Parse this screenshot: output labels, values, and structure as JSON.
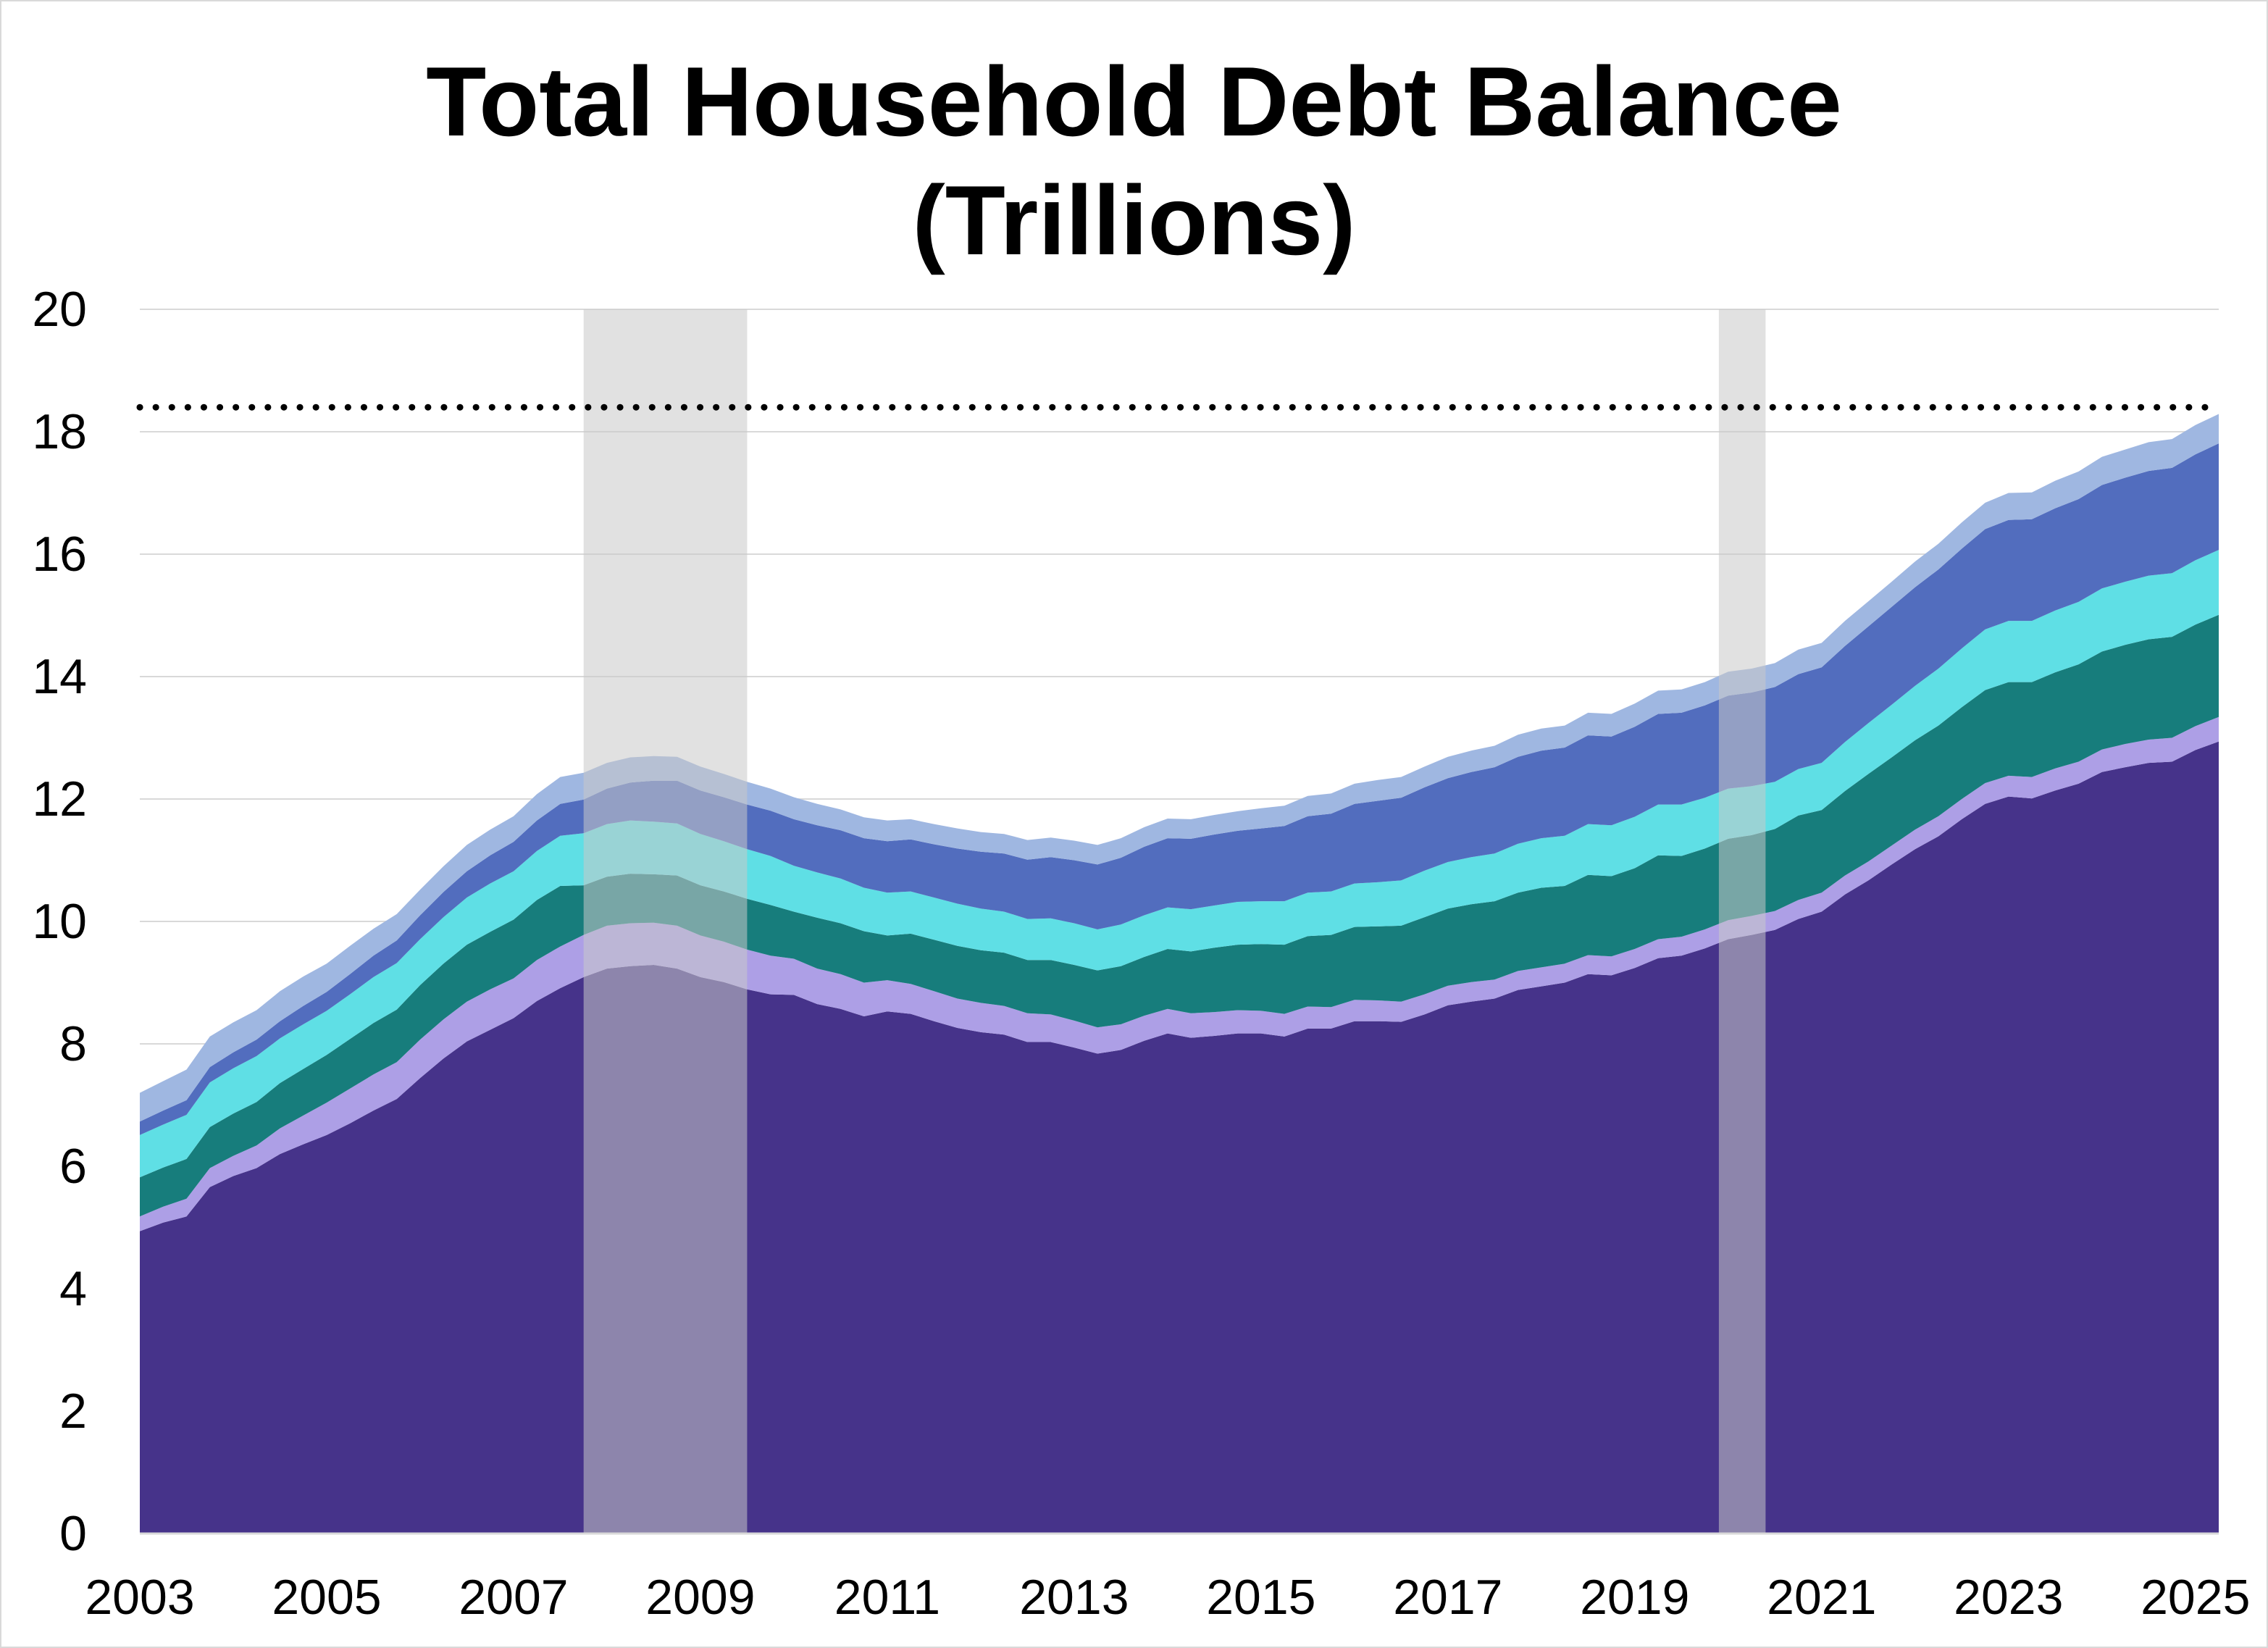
{
  "chart_data": {
    "type": "area",
    "stacked": true,
    "title": "Total Household Debt Balance",
    "subtitle": "(Trillions)",
    "xlabel": "",
    "ylabel": "",
    "xlim": [
      2003.0,
      2025.25
    ],
    "ylim": [
      0,
      20
    ],
    "grid": true,
    "legend": "none",
    "y_ticks": [
      "0",
      "2",
      "4",
      "6",
      "8",
      "10",
      "12",
      "14",
      "16",
      "18",
      "20"
    ],
    "x_ticks": [
      "2003",
      "2005",
      "2007",
      "2009",
      "2011",
      "2013",
      "2015",
      "2017",
      "2019",
      "2021",
      "2023",
      "2025"
    ],
    "recessions": [
      {
        "start": 2007.75,
        "end": 2009.5
      },
      {
        "start": 2019.9,
        "end": 2020.4
      }
    ],
    "reference_line": {
      "value": 18.4,
      "style": "dotted",
      "color": "#000000"
    },
    "x": [
      2003.0,
      2003.25,
      2003.5,
      2003.75,
      2004.0,
      2004.25,
      2004.5,
      2004.75,
      2005.0,
      2005.25,
      2005.5,
      2005.75,
      2006.0,
      2006.25,
      2006.5,
      2006.75,
      2007.0,
      2007.25,
      2007.5,
      2007.75,
      2008.0,
      2008.25,
      2008.5,
      2008.75,
      2009.0,
      2009.25,
      2009.5,
      2009.75,
      2010.0,
      2010.25,
      2010.5,
      2010.75,
      2011.0,
      2011.25,
      2011.5,
      2011.75,
      2012.0,
      2012.25,
      2012.5,
      2012.75,
      2013.0,
      2013.25,
      2013.5,
      2013.75,
      2014.0,
      2014.25,
      2014.5,
      2014.75,
      2015.0,
      2015.25,
      2015.5,
      2015.75,
      2016.0,
      2016.25,
      2016.5,
      2016.75,
      2017.0,
      2017.25,
      2017.5,
      2017.75,
      2018.0,
      2018.25,
      2018.5,
      2018.75,
      2019.0,
      2019.25,
      2019.5,
      2019.75,
      2020.0,
      2020.25,
      2020.5,
      2020.75,
      2021.0,
      2021.25,
      2021.5,
      2021.75,
      2022.0,
      2022.25,
      2022.5,
      2022.75,
      2023.0,
      2023.25,
      2023.5,
      2023.75,
      2024.0,
      2024.25,
      2024.5,
      2024.75,
      2025.0,
      2025.25
    ],
    "series": [
      {
        "color": "#46338a",
        "values": [
          4.94,
          5.08,
          5.18,
          5.66,
          5.84,
          5.97,
          6.2,
          6.36,
          6.51,
          6.7,
          6.91,
          7.1,
          7.44,
          7.76,
          8.04,
          8.23,
          8.42,
          8.7,
          8.91,
          9.09,
          9.23,
          9.27,
          9.29,
          9.23,
          9.09,
          9.01,
          8.89,
          8.81,
          8.8,
          8.65,
          8.57,
          8.45,
          8.53,
          8.49,
          8.37,
          8.26,
          8.19,
          8.15,
          8.03,
          8.03,
          7.94,
          7.84,
          7.9,
          8.05,
          8.17,
          8.1,
          8.13,
          8.17,
          8.17,
          8.12,
          8.25,
          8.25,
          8.37,
          8.37,
          8.36,
          8.48,
          8.63,
          8.69,
          8.74,
          8.88,
          8.94,
          9.0,
          9.14,
          9.12,
          9.24,
          9.4,
          9.44,
          9.56,
          9.71,
          9.78,
          9.86,
          10.04,
          10.16,
          10.44,
          10.67,
          10.93,
          11.18,
          11.39,
          11.67,
          11.92,
          12.04,
          12.01,
          12.14,
          12.25,
          12.44,
          12.52,
          12.59,
          12.61,
          12.8,
          12.94
        ]
      },
      {
        "color": "#ad9fe6",
        "values": [
          0.24,
          0.26,
          0.29,
          0.31,
          0.33,
          0.37,
          0.42,
          0.47,
          0.53,
          0.57,
          0.59,
          0.6,
          0.63,
          0.64,
          0.65,
          0.66,
          0.65,
          0.67,
          0.68,
          0.69,
          0.7,
          0.7,
          0.69,
          0.7,
          0.68,
          0.66,
          0.65,
          0.63,
          0.59,
          0.58,
          0.57,
          0.55,
          0.51,
          0.49,
          0.49,
          0.48,
          0.48,
          0.47,
          0.47,
          0.45,
          0.44,
          0.43,
          0.42,
          0.41,
          0.4,
          0.4,
          0.39,
          0.38,
          0.37,
          0.37,
          0.36,
          0.35,
          0.35,
          0.34,
          0.33,
          0.33,
          0.32,
          0.32,
          0.31,
          0.31,
          0.31,
          0.31,
          0.31,
          0.31,
          0.31,
          0.31,
          0.31,
          0.31,
          0.31,
          0.31,
          0.31,
          0.31,
          0.31,
          0.31,
          0.31,
          0.31,
          0.32,
          0.33,
          0.33,
          0.34,
          0.34,
          0.35,
          0.36,
          0.36,
          0.37,
          0.38,
          0.38,
          0.39,
          0.39,
          0.4
        ]
      },
      {
        "color": "#177d7c",
        "values": [
          0.64,
          0.64,
          0.65,
          0.67,
          0.69,
          0.71,
          0.74,
          0.76,
          0.78,
          0.81,
          0.84,
          0.86,
          0.89,
          0.91,
          0.93,
          0.94,
          0.96,
          0.98,
          0.99,
          0.81,
          0.8,
          0.81,
          0.79,
          0.82,
          0.82,
          0.82,
          0.83,
          0.83,
          0.77,
          0.83,
          0.83,
          0.84,
          0.73,
          0.82,
          0.84,
          0.86,
          0.86,
          0.87,
          0.87,
          0.89,
          0.91,
          0.93,
          0.95,
          0.96,
          0.98,
          1.01,
          1.05,
          1.07,
          1.09,
          1.13,
          1.15,
          1.18,
          1.19,
          1.21,
          1.24,
          1.26,
          1.26,
          1.27,
          1.28,
          1.28,
          1.3,
          1.27,
          1.31,
          1.31,
          1.32,
          1.37,
          1.32,
          1.32,
          1.33,
          1.32,
          1.34,
          1.38,
          1.35,
          1.38,
          1.43,
          1.44,
          1.46,
          1.48,
          1.5,
          1.52,
          1.53,
          1.55,
          1.57,
          1.59,
          1.6,
          1.62,
          1.64,
          1.65,
          1.66,
          1.67
        ]
      },
      {
        "color": "#5fdfe5",
        "values": [
          0.69,
          0.7,
          0.72,
          0.73,
          0.74,
          0.75,
          0.73,
          0.73,
          0.72,
          0.73,
          0.75,
          0.76,
          0.75,
          0.76,
          0.77,
          0.79,
          0.79,
          0.8,
          0.82,
          0.85,
          0.86,
          0.87,
          0.86,
          0.85,
          0.84,
          0.82,
          0.81,
          0.8,
          0.75,
          0.74,
          0.73,
          0.71,
          0.7,
          0.69,
          0.69,
          0.69,
          0.68,
          0.67,
          0.67,
          0.68,
          0.68,
          0.67,
          0.68,
          0.68,
          0.68,
          0.69,
          0.69,
          0.7,
          0.7,
          0.71,
          0.71,
          0.71,
          0.71,
          0.72,
          0.74,
          0.76,
          0.76,
          0.77,
          0.78,
          0.8,
          0.81,
          0.82,
          0.83,
          0.83,
          0.84,
          0.83,
          0.84,
          0.83,
          0.82,
          0.8,
          0.77,
          0.76,
          0.77,
          0.8,
          0.83,
          0.86,
          0.89,
          0.93,
          0.96,
          0.99,
          1.0,
          1.0,
          1.01,
          1.02,
          1.03,
          1.03,
          1.04,
          1.04,
          1.05,
          1.06
        ]
      },
      {
        "color": "#526dbe",
        "values": [
          0.22,
          0.23,
          0.24,
          0.25,
          0.26,
          0.27,
          0.28,
          0.3,
          0.31,
          0.33,
          0.35,
          0.37,
          0.39,
          0.41,
          0.43,
          0.46,
          0.48,
          0.5,
          0.52,
          0.55,
          0.58,
          0.62,
          0.67,
          0.7,
          0.71,
          0.72,
          0.73,
          0.74,
          0.76,
          0.77,
          0.79,
          0.81,
          0.84,
          0.85,
          0.87,
          0.9,
          0.93,
          0.95,
          0.97,
          1.0,
          1.03,
          1.06,
          1.09,
          1.12,
          1.13,
          1.15,
          1.16,
          1.16,
          1.19,
          1.23,
          1.25,
          1.27,
          1.3,
          1.33,
          1.35,
          1.36,
          1.37,
          1.39,
          1.41,
          1.42,
          1.43,
          1.44,
          1.45,
          1.45,
          1.47,
          1.48,
          1.5,
          1.51,
          1.52,
          1.53,
          1.55,
          1.55,
          1.56,
          1.57,
          1.58,
          1.6,
          1.61,
          1.62,
          1.63,
          1.64,
          1.65,
          1.66,
          1.67,
          1.68,
          1.69,
          1.7,
          1.71,
          1.72,
          1.73,
          1.74
        ]
      },
      {
        "color": "#9fb7e1",
        "values": [
          0.47,
          0.48,
          0.5,
          0.5,
          0.49,
          0.48,
          0.49,
          0.48,
          0.46,
          0.46,
          0.44,
          0.43,
          0.42,
          0.42,
          0.43,
          0.42,
          0.42,
          0.43,
          0.44,
          0.44,
          0.42,
          0.41,
          0.4,
          0.39,
          0.39,
          0.38,
          0.37,
          0.36,
          0.36,
          0.35,
          0.34,
          0.34,
          0.34,
          0.33,
          0.33,
          0.33,
          0.32,
          0.32,
          0.32,
          0.32,
          0.32,
          0.32,
          0.32,
          0.32,
          0.32,
          0.32,
          0.32,
          0.32,
          0.33,
          0.33,
          0.33,
          0.33,
          0.33,
          0.34,
          0.34,
          0.34,
          0.35,
          0.35,
          0.35,
          0.36,
          0.36,
          0.36,
          0.37,
          0.37,
          0.38,
          0.38,
          0.38,
          0.38,
          0.39,
          0.39,
          0.39,
          0.4,
          0.4,
          0.41,
          0.41,
          0.41,
          0.42,
          0.42,
          0.43,
          0.43,
          0.44,
          0.44,
          0.45,
          0.45,
          0.46,
          0.46,
          0.47,
          0.47,
          0.48,
          0.48
        ]
      }
    ]
  }
}
